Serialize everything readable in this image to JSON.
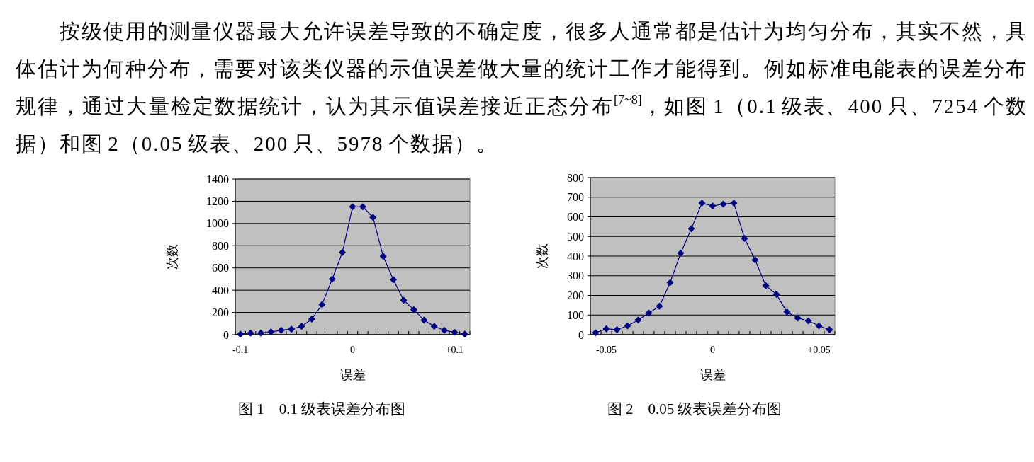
{
  "chart_data": [
    {
      "type": "other",
      "annotations": [
        "按级使用的测量仪器最大允许误差导致的不确定度，很多人通常都是估计为均匀分布，其实不然，具体估计为何种分布，需要对该类仪器的示值误差做大量的统计工作才能得到。例如标准电能表的误差分布规律，通过大量检定数据统计，认为其示值误差接近正态分布$^{[7~8]}$，如图 1（0.1 级表、400 只、7254 个数据）和图 2（0.05 级表、200 只、5978 个数据）。"
      ]
    },
    {
      "type": "line",
      "title": "图 1　0.1 级表误差分布图",
      "xlabel": "误差",
      "ylabel": "次数",
      "categories": [
        "-0.1",
        null,
        null,
        null,
        null,
        null,
        null,
        null,
        null,
        null,
        null,
        "0",
        null,
        null,
        null,
        null,
        null,
        null,
        null,
        null,
        null,
        "+0.1",
        null
      ],
      "series": [
        {
          "color": "#000080",
          "values": [
            5,
            15,
            15,
            25,
            40,
            50,
            75,
            140,
            270,
            500,
            740,
            1150,
            1150,
            1055,
            705,
            495,
            310,
            225,
            130,
            75,
            40,
            20,
            5
          ]
        }
      ],
      "ylim": [
        0,
        1400
      ],
      "yticks": [
        0,
        200,
        400,
        600,
        800,
        1000,
        1200,
        1400
      ],
      "grid": "y",
      "marker": "diamond",
      "line_style": "solid"
    },
    {
      "type": "line",
      "title": "图 2　0.05 级表误差分布图",
      "xlabel": "误差",
      "ylabel": "次数",
      "categories": [
        null,
        "-0.05",
        null,
        null,
        null,
        null,
        null,
        null,
        null,
        null,
        null,
        "0",
        null,
        null,
        null,
        null,
        null,
        null,
        null,
        null,
        null,
        "+0.05",
        null
      ],
      "series": [
        {
          "color": "#000080",
          "values": [
            10,
            30,
            25,
            45,
            75,
            110,
            145,
            265,
            415,
            540,
            670,
            655,
            665,
            670,
            490,
            380,
            250,
            205,
            115,
            85,
            70,
            45,
            25
          ]
        }
      ],
      "ylim": [
        0,
        800
      ],
      "yticks": [
        0,
        100,
        200,
        300,
        400,
        500,
        600,
        700,
        800
      ],
      "grid": "y",
      "marker": "diamond",
      "line_style": "solid"
    }
  ]
}
